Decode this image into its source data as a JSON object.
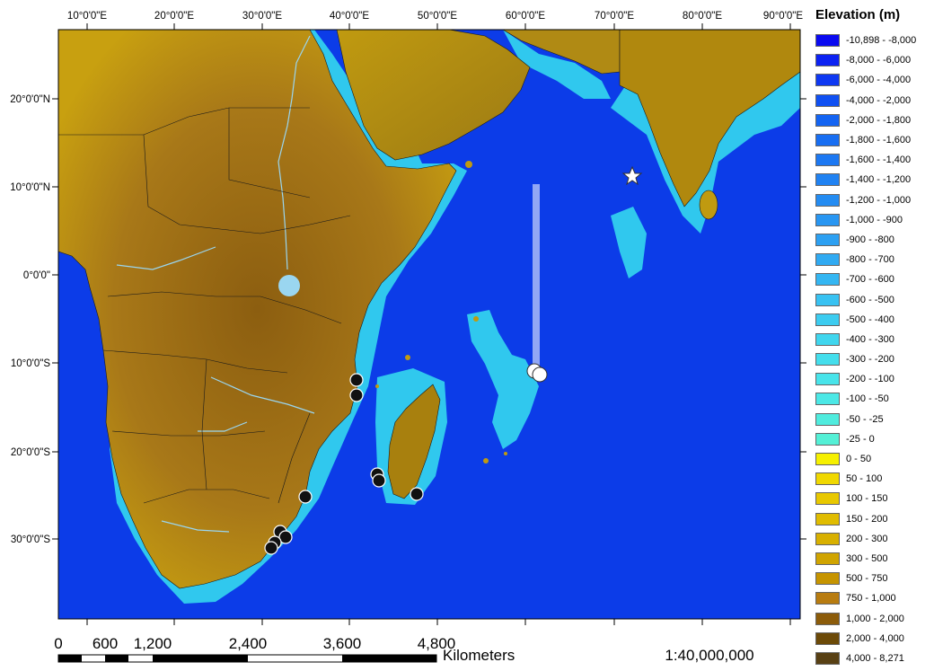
{
  "legend": {
    "title": "Elevation (m)",
    "items": [
      {
        "label": "-10,898 - -8,000",
        "color": "#0a0af0"
      },
      {
        "label": "-8,000 - -6,000",
        "color": "#0c22f2"
      },
      {
        "label": "-6,000 - -4,000",
        "color": "#0e38f2"
      },
      {
        "label": "-4,000 - -2,000",
        "color": "#1050f2"
      },
      {
        "label": "-2,000 - -1,800",
        "color": "#1464f2"
      },
      {
        "label": "-1,800 - -1,600",
        "color": "#186ef2"
      },
      {
        "label": "-1,600 - -1,400",
        "color": "#1c78f2"
      },
      {
        "label": "-1,400 - -1,200",
        "color": "#2082f2"
      },
      {
        "label": "-1,200 - -1,000",
        "color": "#248cf2"
      },
      {
        "label": "-1,000 - -900",
        "color": "#2896f2"
      },
      {
        "label": "-900 - -800",
        "color": "#2ca0f2"
      },
      {
        "label": "-800 - -700",
        "color": "#30aaf2"
      },
      {
        "label": "-700 - -600",
        "color": "#34b6f2"
      },
      {
        "label": "-600 - -500",
        "color": "#38c2f2"
      },
      {
        "label": "-500 - -400",
        "color": "#3cccf0"
      },
      {
        "label": "-400 - -300",
        "color": "#40d6ee"
      },
      {
        "label": "-300 - -200",
        "color": "#44deec"
      },
      {
        "label": "-200 - -100",
        "color": "#48e4ea"
      },
      {
        "label": "-100 - -50",
        "color": "#4ce8e6"
      },
      {
        "label": "-50 - -25",
        "color": "#50ecde"
      },
      {
        "label": "-25 - 0",
        "color": "#54f0d6"
      },
      {
        "label": "0 - 50",
        "color": "#f6f000"
      },
      {
        "label": "50 - 100",
        "color": "#f0d800"
      },
      {
        "label": "100 - 150",
        "color": "#e8c800"
      },
      {
        "label": "150 - 200",
        "color": "#e0bc00"
      },
      {
        "label": "200 - 300",
        "color": "#d8b000"
      },
      {
        "label": "300 - 500",
        "color": "#d0a400"
      },
      {
        "label": "500 - 750",
        "color": "#c69400"
      },
      {
        "label": "750 - 1,000",
        "color": "#b87c10"
      },
      {
        "label": "1,000 - 2,000",
        "color": "#8c5c0a"
      },
      {
        "label": "2,000 - 4,000",
        "color": "#6c4a08"
      },
      {
        "label": "4,000 - 8,271",
        "color": "#584014"
      }
    ]
  },
  "axes": {
    "longitude_labels": [
      "10°0'0\"E",
      "20°0'0\"E",
      "30°0'0\"E",
      "40°0'0\"E",
      "50°0'0\"E",
      "60°0'0\"E",
      "70°0'0\"E",
      "80°0'0\"E",
      "90°0'0\"E"
    ],
    "latitude_labels": [
      "20°0'0\"N",
      "10°0'0\"N",
      "0°0'0\"",
      "10°0'0\"S",
      "20°0'0\"S",
      "30°0'0\"S"
    ]
  },
  "scale_bar": {
    "labels": [
      "0",
      "600",
      "1,200",
      "2,400",
      "3,600",
      "4,800"
    ],
    "unit": "Kilometers"
  },
  "scale_ratio": "1:40,000,000"
}
